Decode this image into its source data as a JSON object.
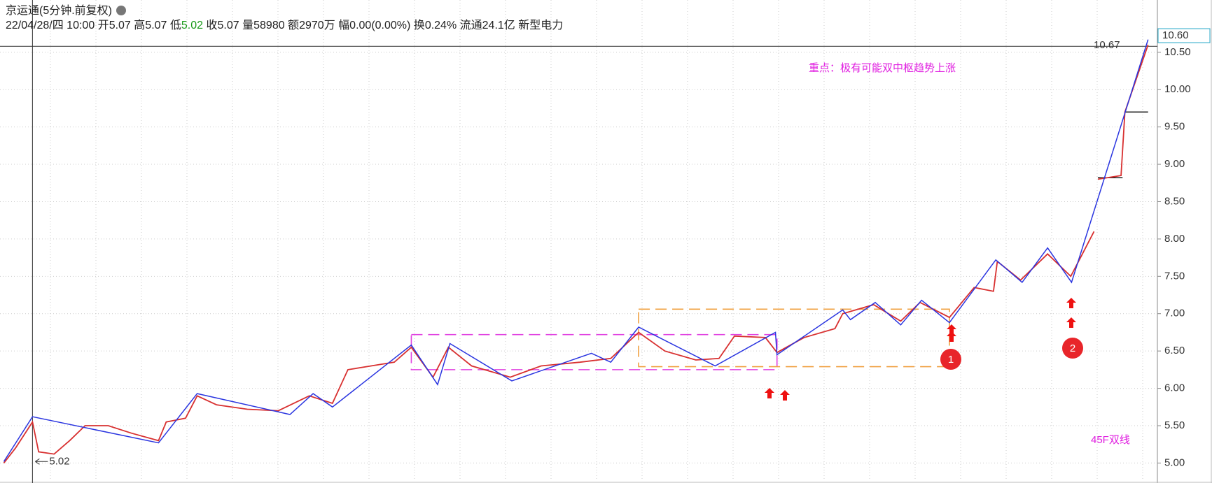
{
  "header": {
    "title": "京运通(5分钟.前复权)",
    "date": "22/04/28/四 10:00",
    "fields": [
      {
        "label": "开",
        "value": "5.07"
      },
      {
        "label": "高",
        "value": "5.07"
      },
      {
        "label": "低",
        "value": "5.02",
        "color": "#1a9a1a"
      },
      {
        "label": "收",
        "value": "5.07"
      },
      {
        "label": "量",
        "value": "58980"
      },
      {
        "label": "额",
        "value": "2970万"
      },
      {
        "label": "幅",
        "value": "0.00(0.00%)"
      },
      {
        "label": "换",
        "value": "0.24%"
      },
      {
        "label": "流通",
        "value": "24.1亿"
      }
    ],
    "sector": "新型电力"
  },
  "chart_data": {
    "type": "line",
    "xlim": [
      0,
      1497
    ],
    "ylim": [
      4.77,
      11.2
    ],
    "yticks": [
      {
        "value": 5,
        "label": "5.00"
      },
      {
        "value": 5.5,
        "label": "5.50"
      },
      {
        "value": 6,
        "label": "6.00"
      },
      {
        "value": 6.5,
        "label": "6.50"
      },
      {
        "value": 7,
        "label": "7.00"
      },
      {
        "value": 7.5,
        "label": "7.50"
      },
      {
        "value": 8,
        "label": "8.00"
      },
      {
        "value": 8.5,
        "label": "8.50"
      },
      {
        "value": 9,
        "label": "9.00"
      },
      {
        "value": 9.5,
        "label": "9.50"
      },
      {
        "value": 10,
        "label": "10.00"
      },
      {
        "value": 10.5,
        "label": "10.50"
      }
    ],
    "grid": true,
    "series": [
      {
        "color": "#d83030",
        "x": [
          5,
          20,
          42,
          50,
          70,
          90,
          110,
          140,
          170,
          205,
          215,
          240,
          255,
          280,
          320,
          360,
          400,
          430,
          450,
          480,
          510,
          532,
          560,
          580,
          610,
          660,
          700,
          750,
          790,
          826,
          860,
          900,
          930,
          950,
          990,
          1005,
          1040,
          1080,
          1090,
          1130,
          1165,
          1190,
          1228,
          1260,
          1285,
          1290,
          1320,
          1355,
          1385,
          1400,
          1415,
          1418,
          1420,
          1450,
          1455,
          1485
        ],
        "values": [
          5.0,
          5.2,
          5.55,
          5.15,
          5.12,
          5.3,
          5.5,
          5.5,
          5.4,
          5.3,
          5.55,
          5.6,
          5.9,
          5.78,
          5.72,
          5.7,
          5.9,
          5.8,
          6.25,
          6.3,
          6.35,
          6.55,
          6.15,
          6.55,
          6.3,
          6.15,
          6.3,
          6.35,
          6.4,
          6.75,
          6.5,
          6.38,
          6.4,
          6.7,
          6.68,
          6.48,
          6.68,
          6.8,
          7.0,
          7.12,
          6.9,
          7.15,
          6.95,
          7.35,
          7.3,
          7.7,
          7.45,
          7.8,
          7.5,
          7.8,
          8.1,
          null,
          8.8,
          8.85,
          9.7,
          10.6
        ]
      },
      {
        "color": "#2a35e0",
        "x": [
          5,
          42,
          205,
          255,
          375,
          405,
          430,
          532,
          566,
          582,
          662,
          765,
          790,
          826,
          925,
          1003,
          1005,
          1090,
          1100,
          1132,
          1165,
          1192,
          1228,
          1288,
          1322,
          1355,
          1386,
          1485
        ],
        "values": [
          5.02,
          5.62,
          5.27,
          5.93,
          5.65,
          5.93,
          5.75,
          6.58,
          6.05,
          6.6,
          6.1,
          6.47,
          6.35,
          6.82,
          6.3,
          6.75,
          6.45,
          7.05,
          6.92,
          7.15,
          6.85,
          7.18,
          6.88,
          7.72,
          7.42,
          7.88,
          7.42,
          10.67
        ]
      }
    ],
    "zones": [
      {
        "color": "#e040e0",
        "x": [
          532,
          1005
        ],
        "y": [
          6.25,
          6.72
        ]
      },
      {
        "color": "#f0a040",
        "x": [
          826,
          1228
        ],
        "y": [
          6.29,
          7.06
        ]
      }
    ],
    "levels": [
      {
        "value": 9.7,
        "x": [
          1455,
          1485
        ]
      },
      {
        "value": 8.82,
        "x": [
          1420,
          1452
        ]
      }
    ],
    "crosshair": {
      "x": 42,
      "y": 10.58
    },
    "high_label": "10.67",
    "price_tag": "10.60",
    "low_label": "5.02",
    "annotations": [
      "重点：极有可能双中枢趋势上涨",
      "45F双线"
    ],
    "markers": [
      "1",
      "2"
    ]
  }
}
